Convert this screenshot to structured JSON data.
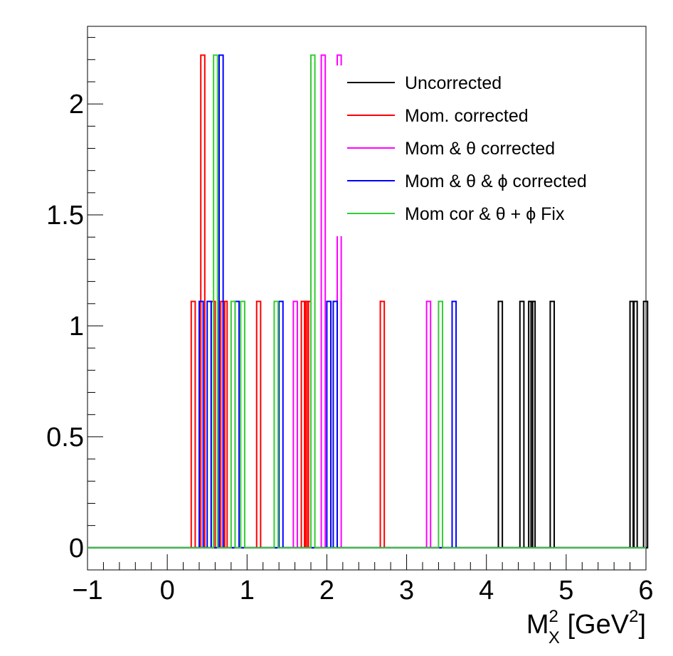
{
  "chart_data": {
    "type": "histogram",
    "xlabel_main": "M",
    "xlabel_sup": "2",
    "xlabel_sub": "X",
    "xlabel_unit_open": " [GeV",
    "xlabel_unit_sup": "2",
    "xlabel_unit_close": "]",
    "ylabel": "",
    "xlim": [
      -1,
      6
    ],
    "ylim": [
      -0.1,
      2.35
    ],
    "x_ticks": [
      -1,
      0,
      1,
      2,
      3,
      4,
      5,
      6
    ],
    "x_tick_labels": [
      "−1",
      "0",
      "1",
      "2",
      "3",
      "4",
      "5",
      "6"
    ],
    "y_ticks": [
      0,
      0.5,
      1,
      1.5,
      2
    ],
    "y_tick_labels": [
      "0",
      "0.5",
      "1",
      "1.5",
      "2"
    ],
    "bin_width": 0.05,
    "legend_position": "top-right",
    "series": [
      {
        "name": "Uncorrected",
        "color": "#000000",
        "bins": [
          [
            4.15,
            1.11
          ],
          [
            4.42,
            1.11
          ],
          [
            4.53,
            1.11
          ],
          [
            4.56,
            1.11
          ],
          [
            4.8,
            1.11
          ],
          [
            5.8,
            1.11
          ],
          [
            5.84,
            1.11
          ],
          [
            5.97,
            1.11
          ]
        ]
      },
      {
        "name": "Mom. corrected",
        "color": "#ff0000",
        "bins": [
          [
            0.3,
            1.11
          ],
          [
            0.42,
            2.22
          ],
          [
            0.55,
            1.11
          ],
          [
            0.67,
            1.11
          ],
          [
            0.7,
            1.11
          ],
          [
            1.12,
            1.11
          ],
          [
            1.68,
            1.11
          ],
          [
            1.72,
            1.11
          ],
          [
            1.75,
            1.11
          ],
          [
            2.67,
            1.11
          ]
        ]
      },
      {
        "name": "Mom & θ corrected",
        "color": "#ff00ff",
        "bins": [
          [
            1.58,
            1.11
          ],
          [
            1.93,
            2.22
          ],
          [
            2.13,
            2.22
          ],
          [
            3.25,
            1.11
          ]
        ]
      },
      {
        "name": "Mom & θ & ϕ corrected",
        "color": "#0000ff",
        "bins": [
          [
            0.4,
            1.11
          ],
          [
            0.5,
            1.11
          ],
          [
            0.65,
            2.22
          ],
          [
            0.85,
            1.11
          ],
          [
            1.4,
            1.11
          ],
          [
            2.0,
            1.11
          ],
          [
            2.08,
            1.11
          ],
          [
            3.57,
            1.11
          ]
        ]
      },
      {
        "name": "Mom cor & θ + ϕ Fix",
        "color": "#33cc33",
        "bins": [
          [
            0.58,
            2.22
          ],
          [
            0.8,
            1.11
          ],
          [
            0.92,
            1.11
          ],
          [
            1.34,
            1.11
          ],
          [
            1.8,
            2.22
          ],
          [
            3.4,
            1.11
          ]
        ]
      }
    ]
  }
}
